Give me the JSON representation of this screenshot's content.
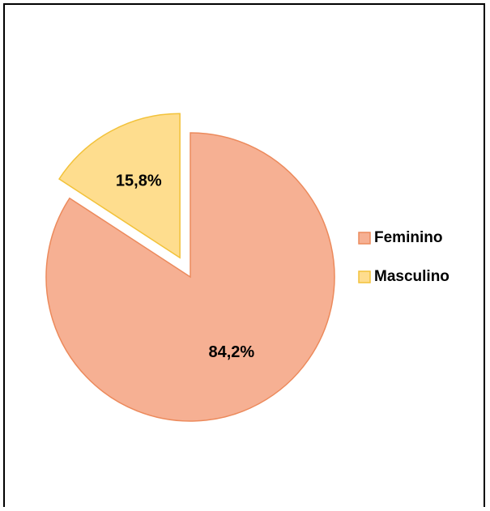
{
  "chart_data": {
    "type": "pie",
    "categories": [
      "Feminino",
      "Masculino"
    ],
    "values": [
      84.2,
      15.8
    ],
    "value_labels": [
      "84,2%",
      "15,8%"
    ],
    "colors": [
      "#f6b093",
      "#fedd8e"
    ],
    "legend": "right"
  }
}
